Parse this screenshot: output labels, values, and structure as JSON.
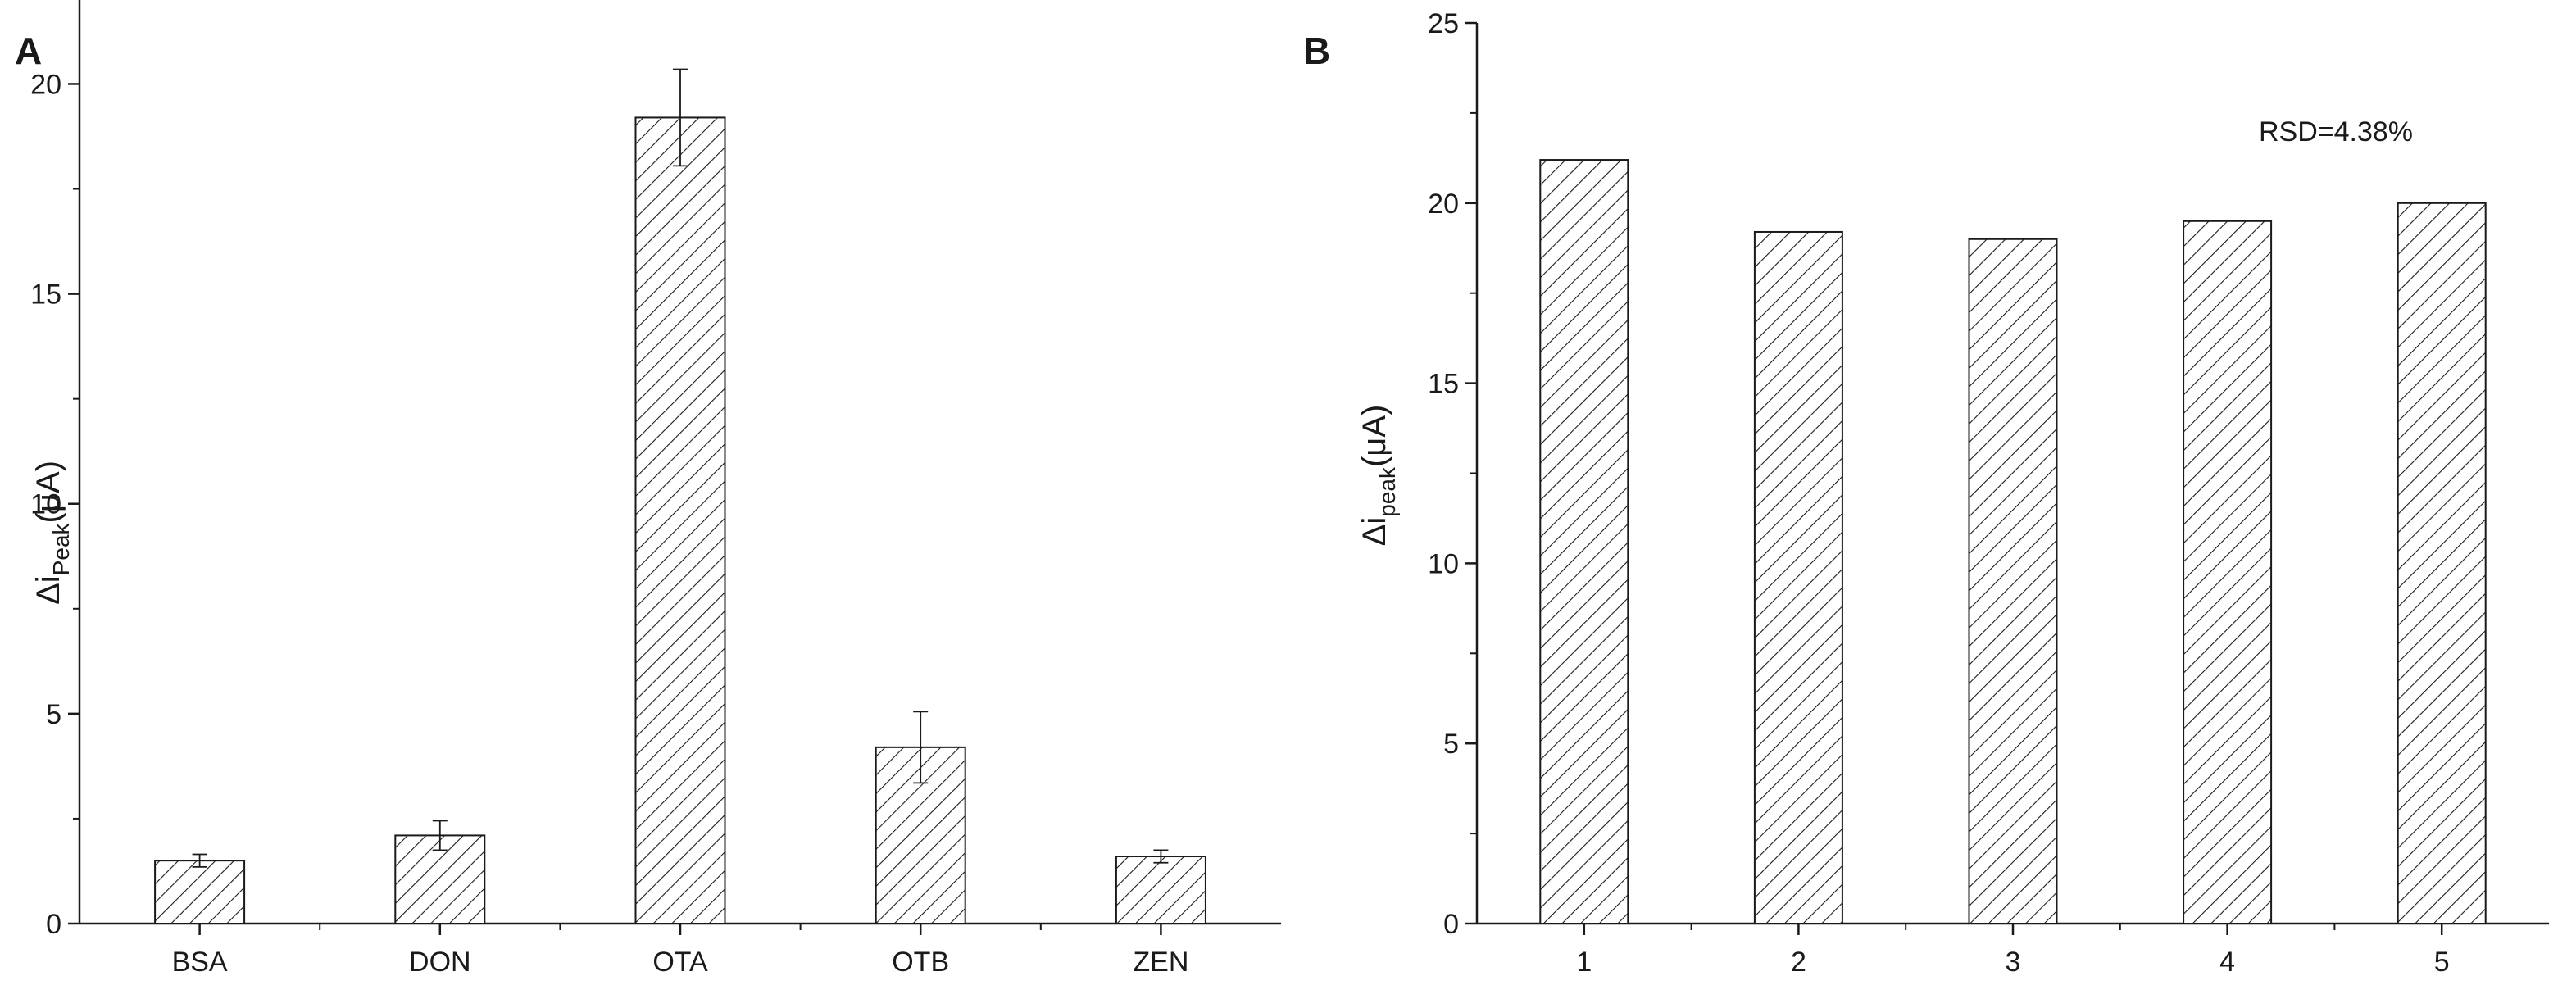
{
  "chart_data": [
    {
      "type": "bar",
      "panel_label": "A",
      "categories": [
        "BSA",
        "DON",
        "OTA",
        "OTB",
        "ZEN"
      ],
      "values": [
        1.5,
        2.1,
        19.2,
        4.2,
        1.6
      ],
      "errors": [
        0.15,
        0.35,
        1.15,
        0.85,
        0.15
      ],
      "ylabel": {
        "prefix": "Δi",
        "sub": "Peak",
        "suffix": "(μA)"
      },
      "xlabel": "",
      "ylim": [
        0,
        22
      ],
      "yticks": [
        0,
        5,
        10,
        15,
        20
      ],
      "bar_fill": "hatched",
      "legend": "none",
      "grid": false
    },
    {
      "type": "bar",
      "panel_label": "B",
      "categories": [
        "1",
        "2",
        "3",
        "4",
        "5"
      ],
      "values": [
        21.2,
        19.2,
        19.0,
        19.5,
        20.0
      ],
      "ylabel": {
        "prefix": "Δi",
        "sub": "peak",
        "suffix": "(μA)"
      },
      "xlabel": "",
      "ylim": [
        0,
        25
      ],
      "yticks": [
        0,
        5,
        10,
        15,
        20,
        25
      ],
      "annotation": "RSD=4.38%",
      "bar_fill": "hatched",
      "legend": "none",
      "grid": false
    }
  ],
  "colors": {
    "axis": "#1a1a1a",
    "bar_fill": "#ffffff",
    "hatch": "#1a1a1a"
  }
}
